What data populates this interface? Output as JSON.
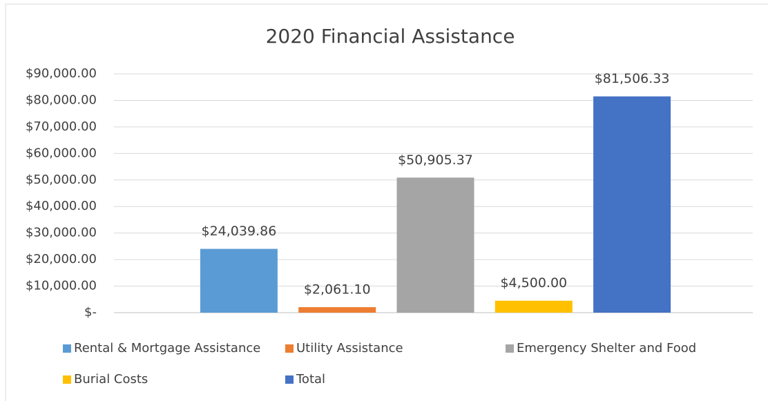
{
  "chart_data": {
    "type": "bar",
    "title": "2020 Financial Assistance",
    "categories": [
      null
    ],
    "series": [
      {
        "name": "Rental & Mortgage Assistance",
        "color": "#5b9bd5",
        "values": [
          24039.86
        ],
        "value_labels": [
          "$24,039.86"
        ]
      },
      {
        "name": "Utility Assistance",
        "color": "#ed7d31",
        "values": [
          2061.1
        ],
        "value_labels": [
          "$2,061.10"
        ]
      },
      {
        "name": "Emergency Shelter and Food",
        "color": "#a5a5a5",
        "values": [
          50905.37
        ],
        "value_labels": [
          "$50,905.37"
        ]
      },
      {
        "name": "Burial Costs",
        "color": "#ffc000",
        "values": [
          4500.0
        ],
        "value_labels": [
          "$4,500.00"
        ]
      },
      {
        "name": "Total",
        "color": "#4472c4",
        "values": [
          81506.33
        ],
        "value_labels": [
          "$81,506.33"
        ]
      }
    ],
    "ylim": [
      0,
      90000
    ],
    "yticks": [
      {
        "value": 0,
        "label": "$-"
      },
      {
        "value": 10000,
        "label": "$10,000.00"
      },
      {
        "value": 20000,
        "label": "$20,000.00"
      },
      {
        "value": 30000,
        "label": "$30,000.00"
      },
      {
        "value": 40000,
        "label": "$40,000.00"
      },
      {
        "value": 50000,
        "label": "$50,000.00"
      },
      {
        "value": 60000,
        "label": "$60,000.00"
      },
      {
        "value": 70000,
        "label": "$70,000.00"
      },
      {
        "value": 80000,
        "label": "$80,000.00"
      },
      {
        "value": 90000,
        "label": "$90,000.00"
      }
    ],
    "grid": true,
    "legend": "bottom"
  }
}
